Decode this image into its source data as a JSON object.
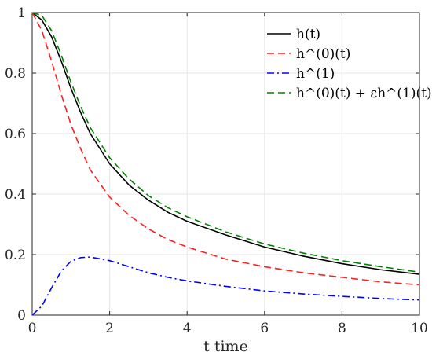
{
  "chart_data": {
    "type": "line",
    "title": "",
    "xlabel": "t time",
    "ylabel": "",
    "xlim": [
      0,
      10
    ],
    "ylim": [
      0,
      1
    ],
    "x_ticks": [
      "0",
      "2",
      "4",
      "6",
      "8",
      "10"
    ],
    "y_ticks": [
      "0",
      "0.2",
      "0.4",
      "0.6",
      "0.8",
      "1"
    ],
    "grid": true,
    "legend_position": "top-right",
    "series": [
      {
        "name": "h(t)",
        "color": "#000000",
        "style": "solid",
        "x": [
          0,
          0.25,
          0.5,
          0.75,
          1,
          1.25,
          1.5,
          2,
          2.5,
          3,
          3.5,
          4,
          5,
          6,
          7,
          8,
          9,
          10
        ],
        "y": [
          1.0,
          0.975,
          0.92,
          0.84,
          0.75,
          0.67,
          0.6,
          0.5,
          0.43,
          0.38,
          0.34,
          0.31,
          0.265,
          0.225,
          0.195,
          0.17,
          0.15,
          0.135
        ]
      },
      {
        "name": "h^(0)(t)",
        "color": "#ff2020",
        "style": "dashed",
        "x": [
          0,
          0.25,
          0.5,
          0.75,
          1,
          1.25,
          1.5,
          2,
          2.5,
          3,
          3.5,
          4,
          5,
          6,
          7,
          8,
          9,
          10
        ],
        "y": [
          1.0,
          0.94,
          0.84,
          0.73,
          0.63,
          0.55,
          0.48,
          0.39,
          0.33,
          0.285,
          0.25,
          0.225,
          0.185,
          0.16,
          0.14,
          0.125,
          0.11,
          0.1
        ]
      },
      {
        "name": "h^(1)",
        "color": "#0000ff",
        "style": "dashdot",
        "x": [
          0,
          0.25,
          0.5,
          0.75,
          1,
          1.25,
          1.5,
          2,
          2.5,
          3,
          3.5,
          4,
          5,
          6,
          7,
          8,
          9,
          10
        ],
        "y": [
          0.0,
          0.03,
          0.09,
          0.145,
          0.178,
          0.19,
          0.192,
          0.18,
          0.16,
          0.14,
          0.125,
          0.113,
          0.095,
          0.08,
          0.07,
          0.062,
          0.055,
          0.05
        ]
      },
      {
        "name": "h^(0)(t) + εh^(1)(t)",
        "color": "#008000",
        "style": "dashed",
        "x": [
          0,
          0.25,
          0.5,
          0.75,
          1,
          1.25,
          1.5,
          2,
          2.5,
          3,
          3.5,
          4,
          5,
          6,
          7,
          8,
          9,
          10
        ],
        "y": [
          1.0,
          0.99,
          0.94,
          0.86,
          0.77,
          0.69,
          0.62,
          0.52,
          0.45,
          0.395,
          0.355,
          0.325,
          0.275,
          0.235,
          0.205,
          0.18,
          0.16,
          0.142
        ]
      }
    ]
  }
}
